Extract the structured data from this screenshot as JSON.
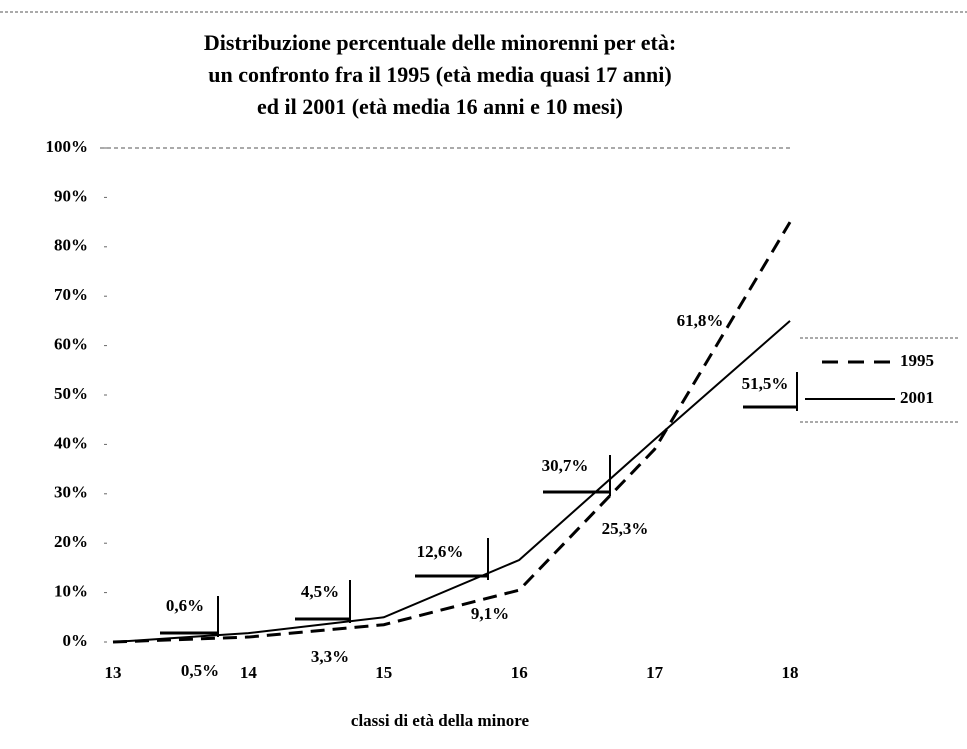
{
  "chart_data": {
    "type": "line",
    "title": [
      "Distribuzione percentuale delle minorenni per età:",
      "un confronto fra il 1995 (età media quasi 17 anni)",
      "ed il 2001 (età media 16 anni e 10 mesi)"
    ],
    "xlabel": "classi di età della minore",
    "x": [
      13,
      14,
      15,
      16,
      17,
      18
    ],
    "series": [
      {
        "name": "1995",
        "color": "#000000",
        "dash": true,
        "values": [
          0,
          1,
          3.5,
          10.5,
          39,
          85
        ]
      },
      {
        "name": "2001",
        "color": "#000000",
        "dash": false,
        "values": [
          0,
          1.8,
          5,
          16.6,
          41,
          65
        ]
      }
    ],
    "annotations": [
      "0,6%",
      "0,5%",
      "4,5%",
      "3,3%",
      "12,6%",
      "9,1%",
      "30,7%",
      "25,3%",
      "61,8%",
      "51,5%"
    ],
    "xlim": [
      13,
      18
    ],
    "xticks": [
      13,
      14,
      15,
      16,
      17,
      18
    ],
    "ylim": [
      0,
      100
    ],
    "yticks": [
      {
        "value": 0,
        "label": "0%"
      },
      {
        "value": 10,
        "label": "10%"
      },
      {
        "value": 20,
        "label": "20%"
      },
      {
        "value": 30,
        "label": "30%"
      },
      {
        "value": 40,
        "label": "40%"
      },
      {
        "value": 50,
        "label": "50%"
      },
      {
        "value": 60,
        "label": "60%"
      },
      {
        "value": 70,
        "label": "70%"
      },
      {
        "value": 80,
        "label": "80%"
      },
      {
        "value": 90,
        "label": "90%"
      },
      {
        "value": 100,
        "label": "100%"
      }
    ],
    "legend": "right"
  }
}
